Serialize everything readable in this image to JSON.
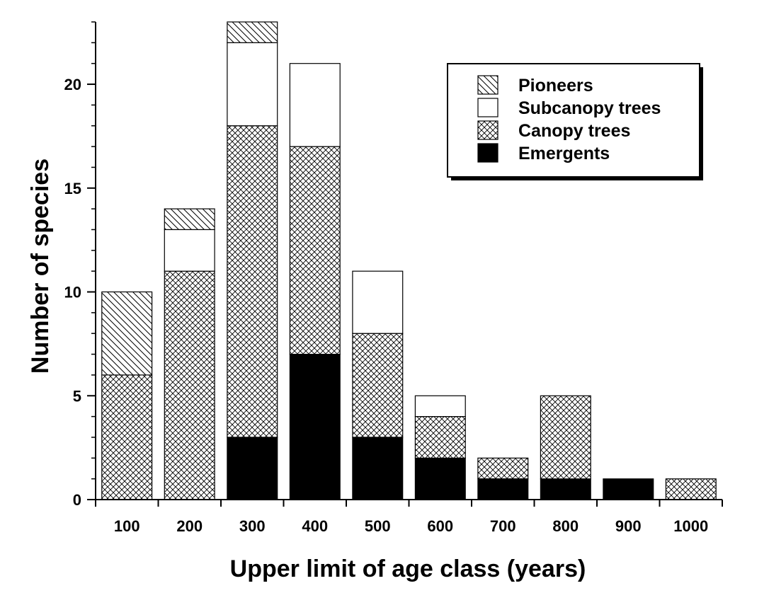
{
  "chart_data": {
    "type": "bar",
    "stacked": true,
    "title": "",
    "xlabel": "Upper limit of age class (years)",
    "ylabel": "Number of species",
    "categories": [
      "100",
      "200",
      "300",
      "400",
      "500",
      "600",
      "700",
      "800",
      "900",
      "1000"
    ],
    "ylim": [
      0,
      23
    ],
    "yticks": [
      0,
      5,
      10,
      15,
      20
    ],
    "yminor_step": 1,
    "grid": false,
    "legend_position": "top-right",
    "series": [
      {
        "name": "Emergents",
        "pattern": "solid-black",
        "values": [
          0,
          0,
          3,
          7,
          3,
          2,
          1,
          1,
          1,
          0
        ]
      },
      {
        "name": "Canopy trees",
        "pattern": "crosshatch",
        "values": [
          6,
          11,
          15,
          10,
          5,
          2,
          1,
          4,
          0,
          1
        ]
      },
      {
        "name": "Subcanopy trees",
        "pattern": "white",
        "values": [
          0,
          2,
          4,
          4,
          3,
          1,
          0,
          0,
          0,
          0
        ]
      },
      {
        "name": "Pioneers",
        "pattern": "diagonal-hatch",
        "values": [
          4,
          1,
          1,
          0,
          0,
          0,
          0,
          0,
          0,
          0
        ]
      }
    ],
    "legend_order": [
      "Pioneers",
      "Subcanopy trees",
      "Canopy trees",
      "Emergents"
    ]
  }
}
